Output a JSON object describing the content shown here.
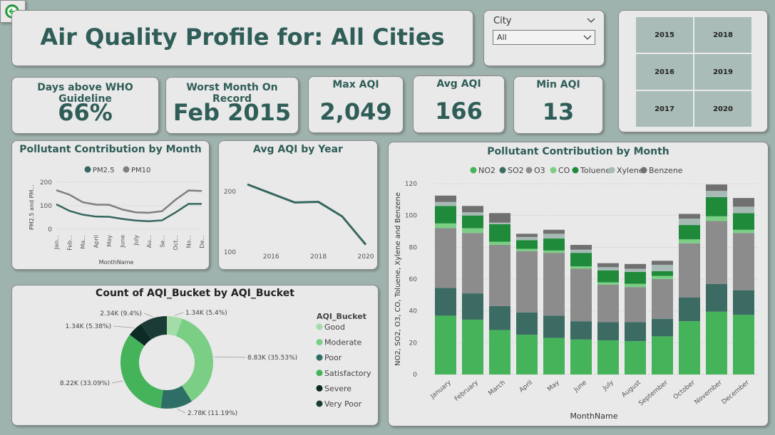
{
  "header": {
    "title": "Air Quality Profile for: All Cities"
  },
  "city_slicer": {
    "label": "City",
    "selected": "All"
  },
  "year_tiles": [
    "2015",
    "2018",
    "2016",
    "2019",
    "2017",
    "2020"
  ],
  "kpis": [
    {
      "label": "Days above WHO Guideline",
      "value": "66%"
    },
    {
      "label": "Worst Month On Record",
      "value": "Feb 2015"
    },
    {
      "label": "Max AQI",
      "value": "2,049"
    },
    {
      "label": "Avg AQI",
      "value": "166"
    },
    {
      "label": "Min AQI",
      "value": "13"
    }
  ],
  "chart_data": [
    {
      "type": "line",
      "title": "Pollutant Contribution by Month",
      "xlabel": "MonthName",
      "ylabel": "PM2.5 and PM...",
      "legend_position": "top",
      "categories": [
        "Jan...",
        "Feb...",
        "Ma...",
        "April",
        "May",
        "June",
        "July",
        "Au...",
        "Se...",
        "Oct...",
        "No...",
        "De..."
      ],
      "ylim": [
        0,
        200
      ],
      "yticks": [
        "0",
        "100",
        "200"
      ],
      "series": [
        {
          "name": "PM2.5",
          "color": "#35675f",
          "values": [
            106,
            78,
            62,
            54,
            53,
            44,
            37,
            34,
            38,
            71,
            108,
            108
          ]
        },
        {
          "name": "PM10",
          "color": "#7f7f7f",
          "values": [
            166,
            147,
            115,
            105,
            104,
            84,
            72,
            70,
            77,
            125,
            165,
            163
          ]
        }
      ]
    },
    {
      "type": "line",
      "title": "Avg AQI by Year",
      "categories": [
        "2015",
        "2016",
        "2017",
        "2018",
        "2019",
        "2020"
      ],
      "xticks": [
        "2016",
        "2018",
        "2020"
      ],
      "yticks": [
        "100",
        "200"
      ],
      "ylim": [
        95,
        225
      ],
      "series": [
        {
          "color": "#35675f",
          "values": [
            212,
            197,
            182,
            183,
            159,
            112
          ]
        }
      ]
    },
    {
      "type": "pie",
      "title": "Count of AQI_Bucket by AQI_Bucket",
      "legend_title": "AQI_Bucket",
      "slices": [
        {
          "name": "Good",
          "value": 1340,
          "label": "1.34K (5.4%)",
          "color": "#a3dca8"
        },
        {
          "name": "Moderate",
          "value": 8830,
          "label": "8.83K (35.53%)",
          "color": "#7acf85"
        },
        {
          "name": "Poor",
          "value": 2780,
          "label": "2.78K (11.19%)",
          "color": "#2f6e66"
        },
        {
          "name": "Satisfactory",
          "value": 8220,
          "label": "8.22K (33.09%)",
          "color": "#45b35a"
        },
        {
          "name": "Severe",
          "value": 1340,
          "label": "1.34K (5.38%)",
          "color": "#0d2b25"
        },
        {
          "name": "Very Poor",
          "value": 2340,
          "label": "2.34K (9.4%)",
          "color": "#1b3b36"
        }
      ]
    },
    {
      "type": "bar",
      "title": "Pollutant Contribution by Month",
      "xlabel": "MonthName",
      "ylabel": "NO2, SO2, O3, CO, Toluene, Xylene and Benzene",
      "legend_position": "top",
      "categories": [
        "January",
        "February",
        "March",
        "April",
        "May",
        "June",
        "July",
        "August",
        "September",
        "October",
        "November",
        "December"
      ],
      "ylim": [
        0,
        120
      ],
      "yticks": [
        "0",
        "20",
        "40",
        "60",
        "80",
        "100",
        "120"
      ],
      "series": [
        {
          "name": "NO2",
          "color": "#45b35a",
          "values": [
            37,
            34.5,
            28,
            25,
            23,
            22,
            21.5,
            21,
            24,
            33.5,
            39.5,
            37.5
          ]
        },
        {
          "name": "SO2",
          "color": "#3b6b63",
          "values": [
            17.5,
            16.5,
            15,
            14,
            14,
            11.5,
            11.5,
            12,
            11,
            15,
            17.5,
            15.5
          ]
        },
        {
          "name": "O3",
          "color": "#8c8c8c",
          "values": [
            37.5,
            38,
            38.5,
            38.5,
            39.5,
            33,
            23.5,
            22,
            25,
            34,
            39.5,
            36
          ]
        },
        {
          "name": "CO",
          "color": "#7acf85",
          "values": [
            3,
            3,
            2,
            1.5,
            1.5,
            1.5,
            1.5,
            2,
            2,
            2.5,
            3,
            2
          ]
        },
        {
          "name": "Toluene",
          "color": "#1f8a3a",
          "values": [
            11,
            8,
            11,
            5.5,
            7.5,
            8.5,
            7.5,
            7.5,
            3,
            9,
            12,
            10.5
          ]
        },
        {
          "name": "Xylene",
          "color": "#a8bab5",
          "values": [
            2.5,
            2,
            1,
            2,
            3,
            2,
            2,
            2,
            4,
            4,
            4,
            4
          ]
        },
        {
          "name": "Benzene",
          "color": "#707070",
          "values": [
            4,
            4,
            6,
            2,
            2.5,
            3,
            2.5,
            3,
            2.5,
            3,
            4,
            5.5
          ]
        }
      ]
    }
  ]
}
